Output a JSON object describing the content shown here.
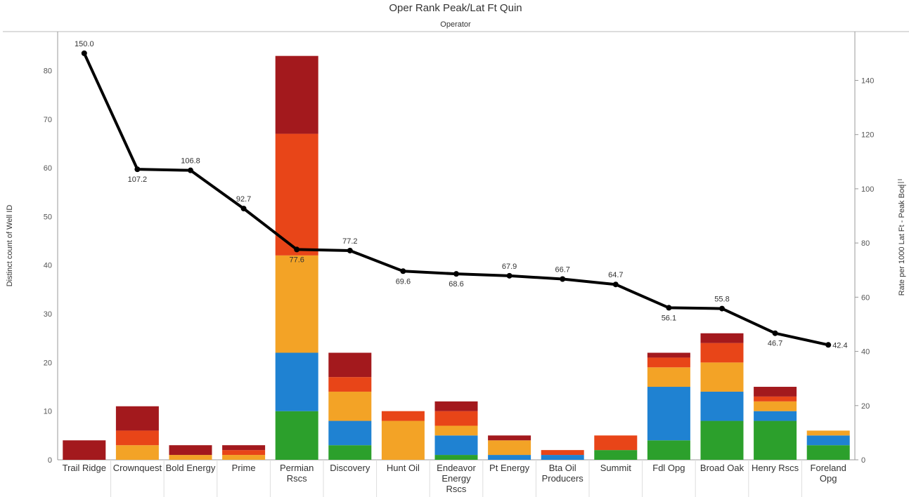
{
  "chart_data": {
    "type": "bar",
    "stacked": true,
    "title": "Oper Rank Peak/Lat Ft Quin",
    "subtitle": "Operator",
    "ylabel": "Distinct count of Well ID",
    "y2label": "Rate per 1000 Lat Ft - Peak Boe",
    "ylim": [
      0,
      88
    ],
    "y2lim": [
      0,
      158
    ],
    "yticks": [
      0,
      10,
      20,
      30,
      40,
      50,
      60,
      70,
      80
    ],
    "y2ticks": [
      0,
      20,
      40,
      60,
      80,
      100,
      120,
      140
    ],
    "grid": false,
    "categories": [
      [
        "Trail Ridge"
      ],
      [
        "Crownquest"
      ],
      [
        "Bold Energy"
      ],
      [
        "Prime"
      ],
      [
        "Permian",
        "Rscs"
      ],
      [
        "Discovery"
      ],
      [
        "Hunt Oil"
      ],
      [
        "Endeavor",
        "Energy",
        "Rscs"
      ],
      [
        "Pt Energy"
      ],
      [
        "Bta Oil",
        "Producers"
      ],
      [
        "Summit"
      ],
      [
        "Fdl Opg"
      ],
      [
        "Broad Oak"
      ],
      [
        "Henry Rscs"
      ],
      [
        "Foreland",
        "Opg"
      ]
    ],
    "series": [
      {
        "color": "#2ca02c",
        "values": [
          0,
          0,
          0,
          0,
          10,
          3,
          0,
          1,
          0,
          0,
          2,
          4,
          8,
          8,
          3
        ]
      },
      {
        "color": "#1f82d2",
        "values": [
          0,
          0,
          0,
          0,
          12,
          5,
          0,
          4,
          1,
          1,
          0,
          11,
          6,
          2,
          2
        ]
      },
      {
        "color": "#f3a326",
        "values": [
          0,
          3,
          1,
          1,
          20,
          6,
          8,
          2,
          3,
          0,
          0,
          4,
          6,
          2,
          1
        ]
      },
      {
        "color": "#e84518",
        "values": [
          0,
          3,
          0,
          1,
          25,
          3,
          2,
          3,
          0,
          1,
          3,
          2,
          4,
          1,
          0
        ]
      },
      {
        "color": "#a3191d",
        "values": [
          4,
          5,
          2,
          1,
          16,
          5,
          0,
          2,
          1,
          0,
          0,
          1,
          2,
          2,
          0
        ]
      }
    ],
    "line": {
      "color": "#000000",
      "values": [
        150.0,
        107.2,
        106.8,
        92.7,
        77.6,
        77.2,
        69.6,
        68.6,
        67.9,
        66.7,
        64.7,
        56.1,
        55.8,
        46.7,
        42.4
      ],
      "labels": [
        "150.0",
        "107.2",
        "106.8",
        "92.7",
        "77.6",
        "77.2",
        "69.6",
        "68.6",
        "67.9",
        "66.7",
        "64.7",
        "56.1",
        "55.8",
        "46.7",
        "42.4"
      ],
      "label_pos": [
        "above",
        "below",
        "above",
        "above",
        "below",
        "above",
        "below",
        "below",
        "above",
        "above",
        "above",
        "below",
        "above",
        "below",
        "right"
      ]
    }
  }
}
